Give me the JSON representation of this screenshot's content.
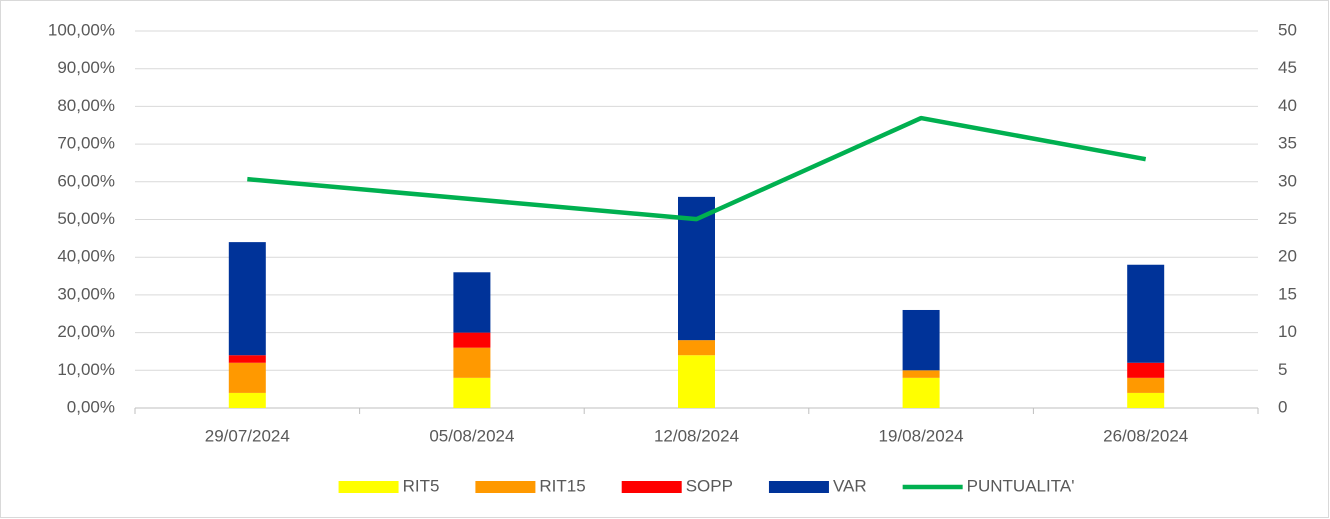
{
  "chart_data": {
    "type": "bar",
    "stacked": true,
    "categories": [
      "29/07/2024",
      "05/08/2024",
      "12/08/2024",
      "19/08/2024",
      "26/08/2024"
    ],
    "series": [
      {
        "name": "RIT5",
        "color": "#ffff00",
        "axis": "y2",
        "values": [
          2,
          4,
          7,
          4,
          2
        ]
      },
      {
        "name": "RIT15",
        "color": "#ff9900",
        "axis": "y2",
        "values": [
          4,
          4,
          2,
          1,
          2
        ]
      },
      {
        "name": "SOPP",
        "color": "#ff0000",
        "axis": "y2",
        "values": [
          1,
          2,
          0,
          0,
          2
        ]
      },
      {
        "name": "VAR",
        "color": "#003399",
        "axis": "y2",
        "values": [
          15,
          8,
          19,
          8,
          13
        ]
      },
      {
        "name": "PUNTUALITA'",
        "color": "#00b050",
        "type": "line",
        "values": [
          60.7,
          55.4,
          50.1,
          76.9,
          66.0
        ]
      }
    ],
    "ylim": [
      0,
      100
    ],
    "yticks": [
      {
        "value": 0,
        "label": "0,00%"
      },
      {
        "value": 10,
        "label": "10,00%"
      },
      {
        "value": 20,
        "label": "20,00%"
      },
      {
        "value": 30,
        "label": "30,00%"
      },
      {
        "value": 40,
        "label": "40,00%"
      },
      {
        "value": 50,
        "label": "50,00%"
      },
      {
        "value": 60,
        "label": "60,00%"
      },
      {
        "value": 70,
        "label": "70,00%"
      },
      {
        "value": 80,
        "label": "80,00%"
      },
      {
        "value": 90,
        "label": "90,00%"
      },
      {
        "value": 100,
        "label": "100,00%"
      }
    ],
    "y2lim": [
      0,
      50
    ],
    "y2ticks": [
      0,
      5,
      10,
      15,
      20,
      25,
      30,
      35,
      40,
      45,
      50
    ],
    "grid": true,
    "legend": "bottom"
  }
}
